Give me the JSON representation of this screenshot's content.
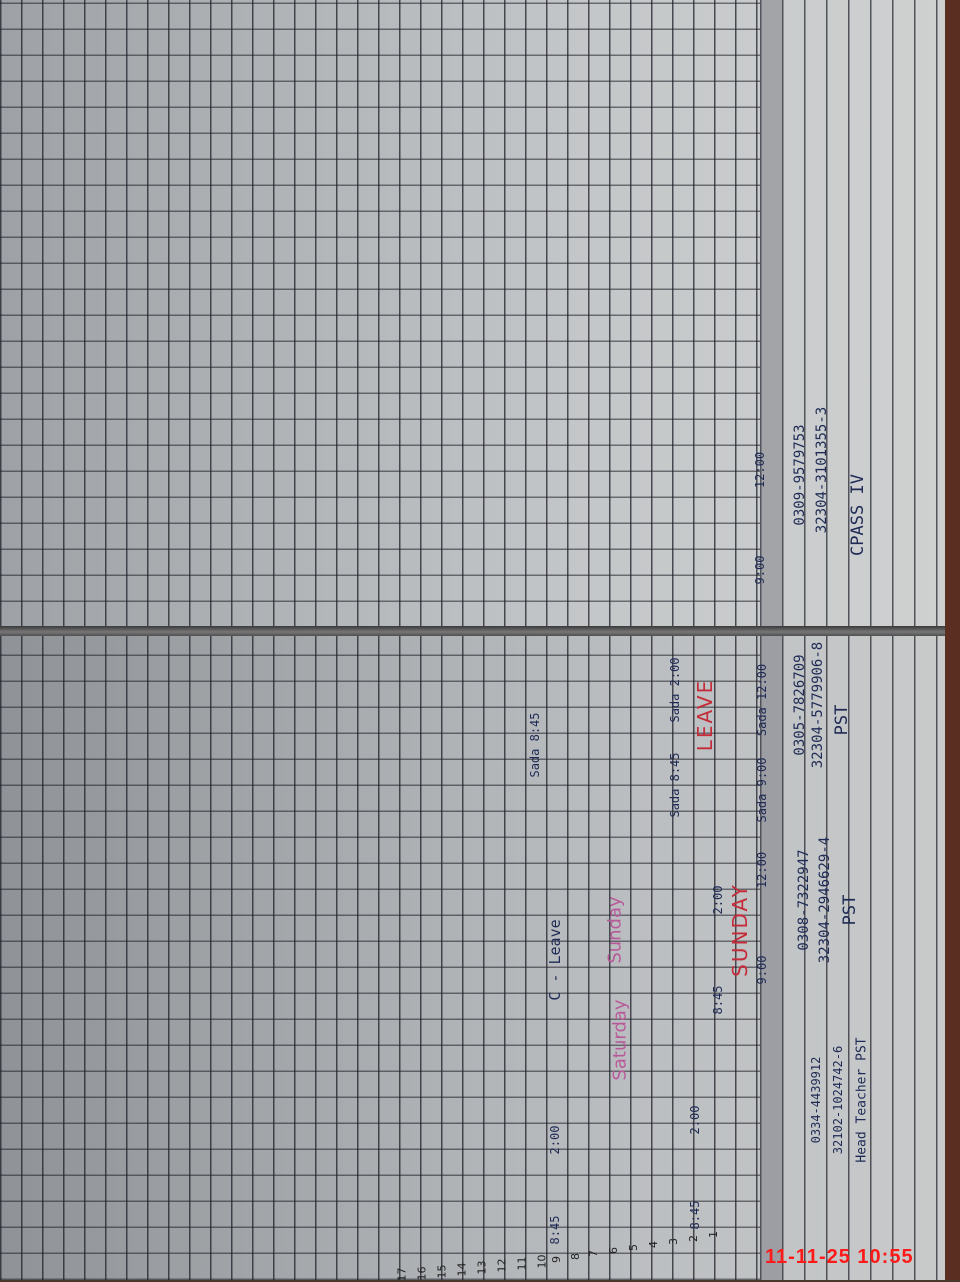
{
  "teachers": [
    {
      "designation": "CPASS IV",
      "cnic": "32304-3101355-3",
      "phone": "0309-9579753"
    },
    {
      "designation": "PST",
      "cnic": "32304-5779906-8",
      "phone": "0305-7826709"
    },
    {
      "designation": "PST",
      "cnic": "32304-2946629-4",
      "phone": "0308-7322947"
    },
    {
      "designation": "Head Teacher PST",
      "cnic": "32102-1024742-6",
      "phone": "0334-4439912"
    }
  ],
  "annotations": {
    "leave": "LEAVE",
    "sunday_red": "SUNDAY",
    "sunday_pink": "Sunday",
    "saturday": "Saturday",
    "c_leave": "C - Leave"
  },
  "times": [
    "12:00",
    "9:00",
    "12:00",
    "9:00",
    "2:00",
    "8:45",
    "2:00",
    "8:45",
    "2:00",
    "8:45",
    "Sada 12:00",
    "Sada 9:00",
    "Sada 2:00",
    "Sada 8:45",
    "Sada 8:45"
  ],
  "row_numbers": [
    "1",
    "2",
    "3",
    "4",
    "5",
    "6",
    "7",
    "8",
    "9",
    "10",
    "11",
    "12",
    "13",
    "14",
    "15",
    "16",
    "17"
  ],
  "timestamp": "11-11-25 10:55",
  "colors": {
    "ink_blue": "#1e2a55",
    "ink_red": "#c42c3a",
    "ink_pink": "#b85a9a",
    "timestamp": "#ff1a1a"
  }
}
